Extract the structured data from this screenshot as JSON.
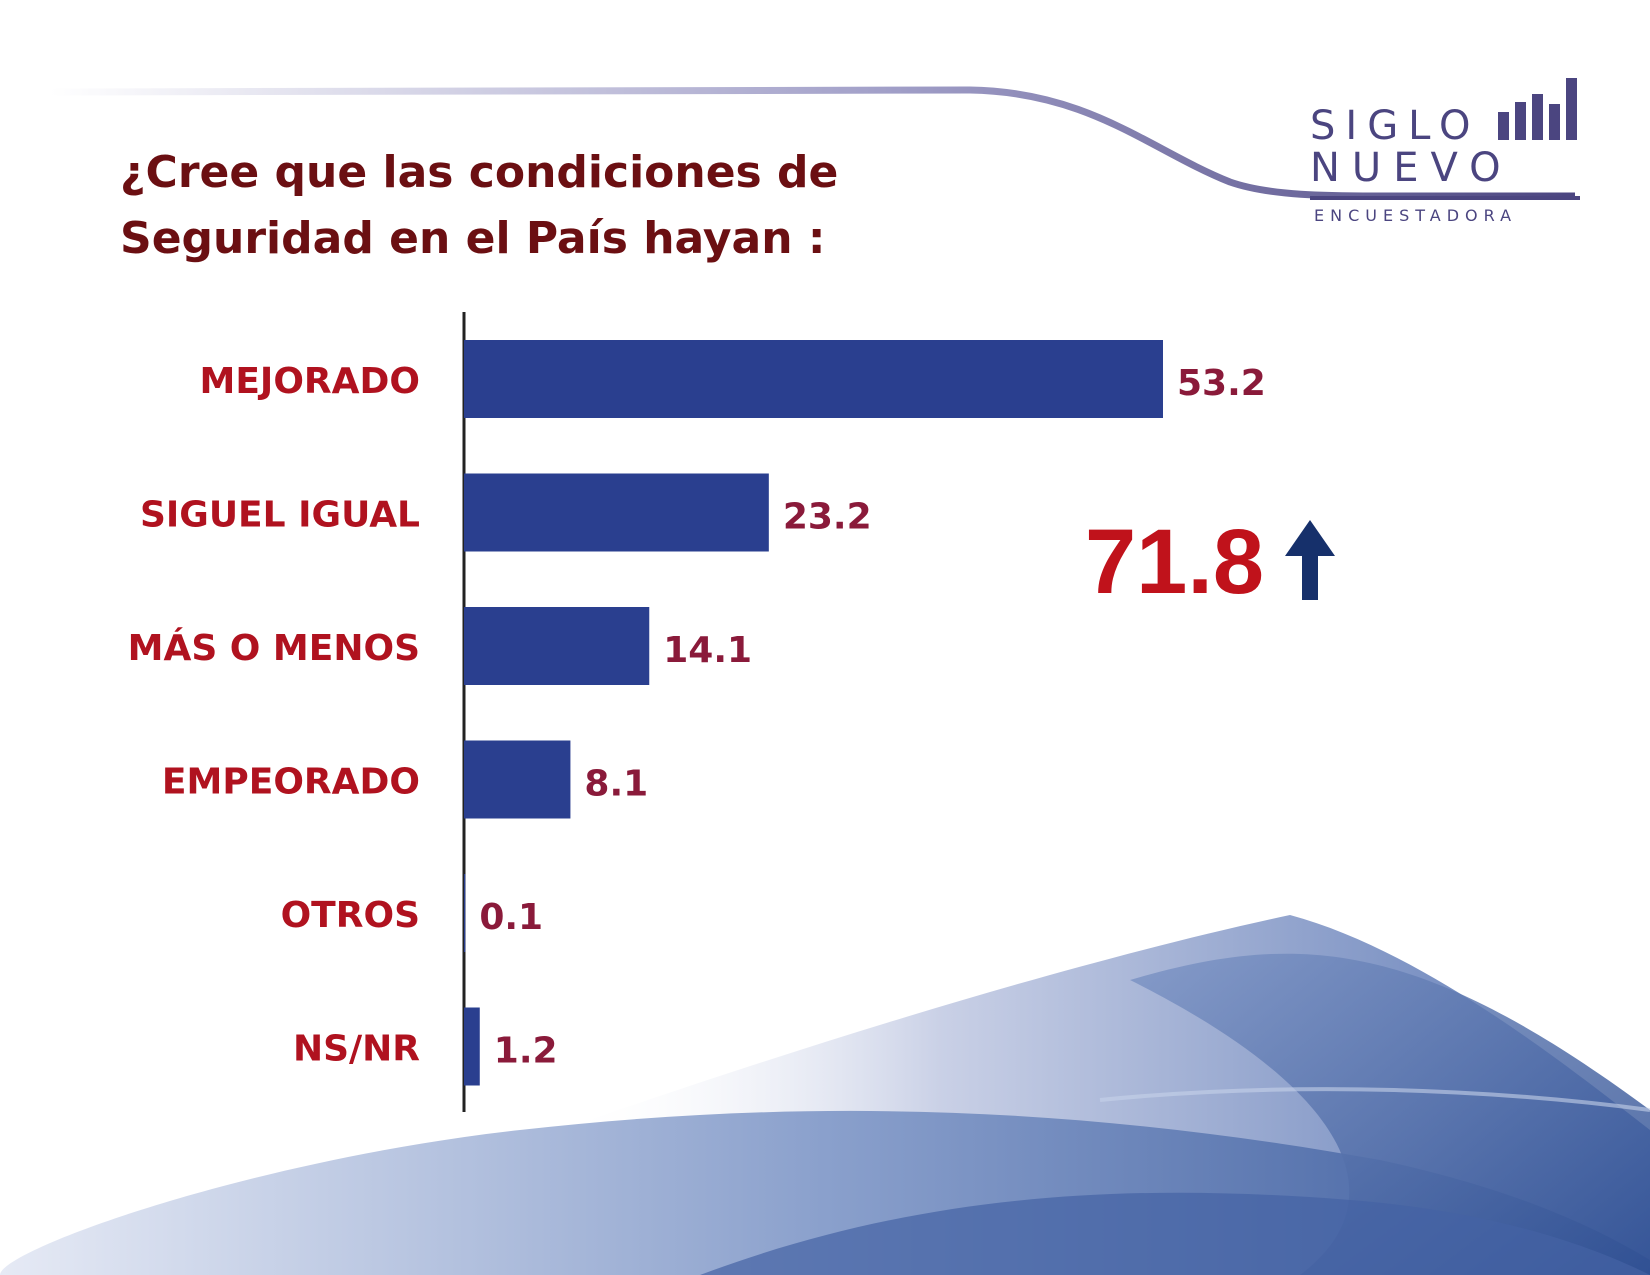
{
  "title": "¿Cree que las condiciones de Seguridad en el País hayan :",
  "logo": {
    "line1": "SIGLO",
    "line2": "NUEVO",
    "subtitle": "ENCUESTADORA",
    "color": "#4b4580"
  },
  "highlight": {
    "value": "71.8",
    "color": "#c0121b",
    "icon": "arrow-up-icon",
    "icon_color": "#16306b"
  },
  "chart_data": {
    "type": "bar",
    "orientation": "horizontal",
    "categories": [
      "MEJORADO",
      "SIGUEL IGUAL",
      "MÁS O MENOS",
      "EMPEORADO",
      "OTROS",
      "NS/NR"
    ],
    "values": [
      53.2,
      23.2,
      14.1,
      8.1,
      0.1,
      1.2
    ],
    "value_labels": [
      "53.2",
      "23.2",
      "14.1",
      "8.1",
      "0.1",
      "1.2"
    ],
    "xlim": [
      0,
      60
    ],
    "grid": false,
    "legend": "none",
    "bar_color": "#2a3f8f",
    "label_color": "#b0121f",
    "value_color": "#8a1a3a"
  }
}
